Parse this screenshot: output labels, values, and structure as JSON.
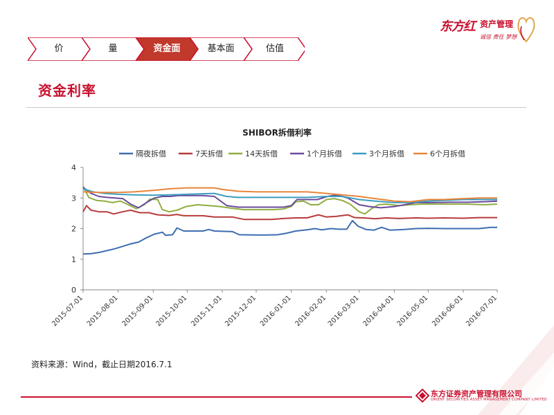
{
  "brand": {
    "name": "东方红",
    "subtitle": "资产管理",
    "slogan": "诚信  责任  梦想"
  },
  "nav": {
    "tabs": [
      {
        "label": "价",
        "active": false
      },
      {
        "label": "量",
        "active": false
      },
      {
        "label": "资金面",
        "active": true
      },
      {
        "label": "基本面",
        "active": false
      },
      {
        "label": "估值",
        "active": false
      }
    ],
    "active_color": "#c0392b",
    "border_color": "#c8102e"
  },
  "page_title": "资金利率",
  "source_note": "资料来源：Wind，截止日期2016.7.1",
  "footer": {
    "company_name": "东方证券资产管理有限公司",
    "company_en": "ORIENT SECURITIES ASSET MANAGEMENT COMPANY LIMITED"
  },
  "chart_data": {
    "type": "line",
    "title": "SHIBOR拆借利率",
    "xlabel": "",
    "ylabel": "",
    "x_start": "2015-07-01",
    "x_end": "2016-07-01",
    "x_ticks": [
      "2015-07-01",
      "2015-08-01",
      "2015-09-01",
      "2015-10-01",
      "2015-11-01",
      "2015-12-01",
      "2016-01-01",
      "2016-02-01",
      "2016-03-01",
      "2016-04-01",
      "2016-05-01",
      "2016-06-01",
      "2016-07-01"
    ],
    "ylim": [
      0,
      4
    ],
    "y_ticks": [
      0,
      1,
      2,
      3,
      4
    ],
    "grid": false,
    "legend_position": "top",
    "series": [
      {
        "name": "隔夜拆借",
        "color": "#3d6cb0",
        "points": [
          [
            "2015-07-01",
            1.17
          ],
          [
            "2015-07-08",
            1.18
          ],
          [
            "2015-07-15",
            1.22
          ],
          [
            "2015-07-22",
            1.28
          ],
          [
            "2015-07-29",
            1.34
          ],
          [
            "2015-08-05",
            1.42
          ],
          [
            "2015-08-12",
            1.5
          ],
          [
            "2015-08-19",
            1.56
          ],
          [
            "2015-08-26",
            1.7
          ],
          [
            "2015-09-02",
            1.82
          ],
          [
            "2015-09-09",
            1.88
          ],
          [
            "2015-09-12",
            1.78
          ],
          [
            "2015-09-18",
            1.8
          ],
          [
            "2015-09-22",
            2.02
          ],
          [
            "2015-09-28",
            1.92
          ],
          [
            "2015-10-15",
            1.92
          ],
          [
            "2015-10-20",
            1.97
          ],
          [
            "2015-10-25",
            1.92
          ],
          [
            "2015-11-10",
            1.9
          ],
          [
            "2015-11-16",
            1.8
          ],
          [
            "2015-12-01",
            1.79
          ],
          [
            "2015-12-10",
            1.79
          ],
          [
            "2015-12-20",
            1.8
          ],
          [
            "2015-12-28",
            1.85
          ],
          [
            "2016-01-05",
            1.92
          ],
          [
            "2016-01-15",
            1.96
          ],
          [
            "2016-01-22",
            2.0
          ],
          [
            "2016-01-28",
            1.96
          ],
          [
            "2016-02-05",
            2.0
          ],
          [
            "2016-02-12",
            1.98
          ],
          [
            "2016-02-19",
            1.98
          ],
          [
            "2016-02-24",
            2.26
          ],
          [
            "2016-02-29",
            2.08
          ],
          [
            "2016-03-07",
            1.97
          ],
          [
            "2016-03-14",
            1.95
          ],
          [
            "2016-03-21",
            2.04
          ],
          [
            "2016-03-28",
            1.95
          ],
          [
            "2016-04-10",
            1.97
          ],
          [
            "2016-04-20",
            2.0
          ],
          [
            "2016-05-01",
            2.01
          ],
          [
            "2016-05-15",
            2.0
          ],
          [
            "2016-06-01",
            2.0
          ],
          [
            "2016-06-15",
            2.0
          ],
          [
            "2016-06-25",
            2.04
          ],
          [
            "2016-07-01",
            2.04
          ]
        ]
      },
      {
        "name": "7天拆借",
        "color": "#b83a3a",
        "points": [
          [
            "2015-07-01",
            2.55
          ],
          [
            "2015-07-04",
            2.75
          ],
          [
            "2015-07-08",
            2.6
          ],
          [
            "2015-07-15",
            2.55
          ],
          [
            "2015-07-22",
            2.55
          ],
          [
            "2015-07-28",
            2.48
          ],
          [
            "2015-08-05",
            2.55
          ],
          [
            "2015-08-12",
            2.6
          ],
          [
            "2015-08-20",
            2.52
          ],
          [
            "2015-08-28",
            2.52
          ],
          [
            "2015-09-05",
            2.45
          ],
          [
            "2015-09-15",
            2.43
          ],
          [
            "2015-09-22",
            2.46
          ],
          [
            "2015-09-28",
            2.42
          ],
          [
            "2015-10-15",
            2.42
          ],
          [
            "2015-10-25",
            2.38
          ],
          [
            "2015-11-10",
            2.38
          ],
          [
            "2015-11-20",
            2.3
          ],
          [
            "2015-12-01",
            2.3
          ],
          [
            "2015-12-15",
            2.3
          ],
          [
            "2015-12-25",
            2.33
          ],
          [
            "2016-01-05",
            2.35
          ],
          [
            "2016-01-15",
            2.35
          ],
          [
            "2016-01-25",
            2.45
          ],
          [
            "2016-02-01",
            2.38
          ],
          [
            "2016-02-10",
            2.4
          ],
          [
            "2016-02-20",
            2.45
          ],
          [
            "2016-02-26",
            2.36
          ],
          [
            "2016-03-05",
            2.35
          ],
          [
            "2016-03-15",
            2.32
          ],
          [
            "2016-03-25",
            2.35
          ],
          [
            "2016-04-05",
            2.33
          ],
          [
            "2016-04-20",
            2.35
          ],
          [
            "2016-05-01",
            2.34
          ],
          [
            "2016-05-15",
            2.35
          ],
          [
            "2016-06-01",
            2.34
          ],
          [
            "2016-06-15",
            2.36
          ],
          [
            "2016-07-01",
            2.36
          ]
        ]
      },
      {
        "name": "14天拆借",
        "color": "#8fad3f",
        "points": [
          [
            "2015-07-01",
            3.38
          ],
          [
            "2015-07-06",
            3.02
          ],
          [
            "2015-07-13",
            2.92
          ],
          [
            "2015-07-20",
            2.9
          ],
          [
            "2015-07-27",
            2.85
          ],
          [
            "2015-08-03",
            2.9
          ],
          [
            "2015-08-10",
            2.78
          ],
          [
            "2015-08-17",
            2.65
          ],
          [
            "2015-08-24",
            2.78
          ],
          [
            "2015-08-29",
            2.96
          ],
          [
            "2015-09-05",
            2.95
          ],
          [
            "2015-09-09",
            2.62
          ],
          [
            "2015-09-15",
            2.55
          ],
          [
            "2015-09-22",
            2.6
          ],
          [
            "2015-09-30",
            2.72
          ],
          [
            "2015-10-10",
            2.78
          ],
          [
            "2015-10-20",
            2.75
          ],
          [
            "2015-10-30",
            2.72
          ],
          [
            "2015-11-10",
            2.66
          ],
          [
            "2015-11-20",
            2.62
          ],
          [
            "2015-12-01",
            2.62
          ],
          [
            "2015-12-15",
            2.62
          ],
          [
            "2015-12-25",
            2.64
          ],
          [
            "2016-01-01",
            2.72
          ],
          [
            "2016-01-05",
            2.88
          ],
          [
            "2016-01-12",
            2.9
          ],
          [
            "2016-01-18",
            2.78
          ],
          [
            "2016-01-25",
            2.78
          ],
          [
            "2016-02-01",
            2.95
          ],
          [
            "2016-02-08",
            2.98
          ],
          [
            "2016-02-15",
            2.92
          ],
          [
            "2016-02-22",
            2.8
          ],
          [
            "2016-03-01",
            2.55
          ],
          [
            "2016-03-06",
            2.48
          ],
          [
            "2016-03-12",
            2.65
          ],
          [
            "2016-03-18",
            2.78
          ],
          [
            "2016-03-25",
            2.8
          ],
          [
            "2016-04-05",
            2.75
          ],
          [
            "2016-04-15",
            2.78
          ],
          [
            "2016-04-25",
            2.8
          ],
          [
            "2016-05-05",
            2.8
          ],
          [
            "2016-05-20",
            2.8
          ],
          [
            "2016-06-05",
            2.8
          ],
          [
            "2016-06-20",
            2.78
          ],
          [
            "2016-07-01",
            2.8
          ]
        ]
      },
      {
        "name": "1个月拆借",
        "color": "#6a4a9a",
        "points": [
          [
            "2015-07-01",
            3.35
          ],
          [
            "2015-07-08",
            3.15
          ],
          [
            "2015-07-15",
            3.05
          ],
          [
            "2015-07-22",
            3.02
          ],
          [
            "2015-07-29",
            3.0
          ],
          [
            "2015-08-05",
            2.98
          ],
          [
            "2015-08-12",
            2.8
          ],
          [
            "2015-08-19",
            2.68
          ],
          [
            "2015-08-26",
            2.85
          ],
          [
            "2015-09-02",
            3.0
          ],
          [
            "2015-09-09",
            3.05
          ],
          [
            "2015-09-16",
            3.05
          ],
          [
            "2015-09-23",
            3.08
          ],
          [
            "2015-10-05",
            3.08
          ],
          [
            "2015-10-15",
            3.08
          ],
          [
            "2015-10-25",
            3.05
          ],
          [
            "2015-11-05",
            2.75
          ],
          [
            "2015-11-15",
            2.7
          ],
          [
            "2015-11-25",
            2.7
          ],
          [
            "2015-12-10",
            2.7
          ],
          [
            "2015-12-25",
            2.7
          ],
          [
            "2016-01-01",
            2.75
          ],
          [
            "2016-01-06",
            2.95
          ],
          [
            "2016-01-15",
            2.95
          ],
          [
            "2016-01-24",
            2.95
          ],
          [
            "2016-02-02",
            3.05
          ],
          [
            "2016-02-10",
            3.1
          ],
          [
            "2016-02-20",
            3.0
          ],
          [
            "2016-03-01",
            2.78
          ],
          [
            "2016-03-10",
            2.72
          ],
          [
            "2016-03-20",
            2.68
          ],
          [
            "2016-04-01",
            2.72
          ],
          [
            "2016-04-10",
            2.78
          ],
          [
            "2016-04-20",
            2.85
          ],
          [
            "2016-05-05",
            2.85
          ],
          [
            "2016-05-20",
            2.86
          ],
          [
            "2016-06-05",
            2.86
          ],
          [
            "2016-06-20",
            2.88
          ],
          [
            "2016-07-01",
            2.9
          ]
        ]
      },
      {
        "name": "3个月拆借",
        "color": "#3a9dc0",
        "points": [
          [
            "2015-07-01",
            3.3
          ],
          [
            "2015-07-10",
            3.2
          ],
          [
            "2015-07-20",
            3.15
          ],
          [
            "2015-08-01",
            3.12
          ],
          [
            "2015-08-15",
            3.1
          ],
          [
            "2015-09-01",
            3.09
          ],
          [
            "2015-09-15",
            3.1
          ],
          [
            "2015-10-01",
            3.12
          ],
          [
            "2015-10-15",
            3.14
          ],
          [
            "2015-10-25",
            3.15
          ],
          [
            "2015-11-05",
            3.05
          ],
          [
            "2015-11-15",
            3.02
          ],
          [
            "2015-12-01",
            3.02
          ],
          [
            "2015-12-15",
            3.02
          ],
          [
            "2016-01-01",
            3.02
          ],
          [
            "2016-01-15",
            3.02
          ],
          [
            "2016-02-01",
            3.05
          ],
          [
            "2016-02-15",
            3.05
          ],
          [
            "2016-03-01",
            2.95
          ],
          [
            "2016-03-15",
            2.9
          ],
          [
            "2016-04-01",
            2.85
          ],
          [
            "2016-04-15",
            2.85
          ],
          [
            "2016-05-01",
            2.9
          ],
          [
            "2016-05-15",
            2.92
          ],
          [
            "2016-06-01",
            2.95
          ],
          [
            "2016-06-15",
            2.95
          ],
          [
            "2016-07-01",
            2.95
          ]
        ]
      },
      {
        "name": "6个月拆借",
        "color": "#e8853a",
        "points": [
          [
            "2015-07-01",
            3.2
          ],
          [
            "2015-07-15",
            3.18
          ],
          [
            "2015-08-01",
            3.18
          ],
          [
            "2015-08-15",
            3.2
          ],
          [
            "2015-09-01",
            3.25
          ],
          [
            "2015-09-15",
            3.3
          ],
          [
            "2015-10-01",
            3.33
          ],
          [
            "2015-10-15",
            3.33
          ],
          [
            "2015-10-25",
            3.33
          ],
          [
            "2015-11-01",
            3.28
          ],
          [
            "2015-11-15",
            3.22
          ],
          [
            "2015-12-01",
            3.2
          ],
          [
            "2015-12-15",
            3.2
          ],
          [
            "2016-01-01",
            3.2
          ],
          [
            "2016-01-15",
            3.2
          ],
          [
            "2016-02-01",
            3.15
          ],
          [
            "2016-02-15",
            3.1
          ],
          [
            "2016-03-01",
            3.05
          ],
          [
            "2016-03-15",
            2.98
          ],
          [
            "2016-04-01",
            2.9
          ],
          [
            "2016-04-15",
            2.88
          ],
          [
            "2016-05-01",
            2.95
          ],
          [
            "2016-05-15",
            2.95
          ],
          [
            "2016-06-01",
            2.98
          ],
          [
            "2016-06-15",
            3.0
          ],
          [
            "2016-07-01",
            3.0
          ]
        ]
      }
    ]
  }
}
